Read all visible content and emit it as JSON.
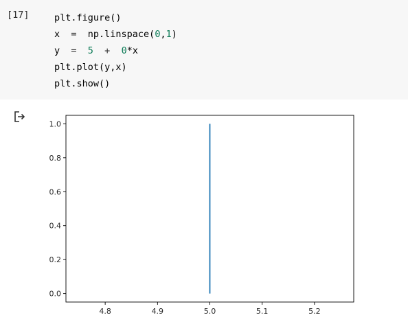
{
  "cell": {
    "prompt": "[17]",
    "lines": [
      [
        {
          "t": "plt.figure()",
          "k": "plain"
        }
      ],
      [
        {
          "t": "x",
          "k": "plain"
        },
        {
          "t": "  =  ",
          "k": "op"
        },
        {
          "t": "np.linspace(",
          "k": "plain"
        },
        {
          "t": "0",
          "k": "num"
        },
        {
          "t": ",",
          "k": "plain"
        },
        {
          "t": "1",
          "k": "num"
        },
        {
          "t": ")",
          "k": "plain"
        }
      ],
      [
        {
          "t": "y",
          "k": "plain"
        },
        {
          "t": "  =  ",
          "k": "op"
        },
        {
          "t": "5",
          "k": "num"
        },
        {
          "t": "  +  ",
          "k": "op"
        },
        {
          "t": "0",
          "k": "num"
        },
        {
          "t": "*x",
          "k": "plain"
        }
      ],
      [
        {
          "t": "plt.plot(y,x)",
          "k": "plain"
        }
      ],
      [
        {
          "t": "plt.show()",
          "k": "plain"
        }
      ]
    ]
  },
  "output": {
    "icon": "output-arrow-icon"
  },
  "chart_data": {
    "type": "line",
    "series": [
      {
        "x": [
          5.0,
          5.0
        ],
        "y": [
          0.0,
          1.0
        ],
        "color": "#1f77b4"
      }
    ],
    "xlim": [
      4.725,
      5.275
    ],
    "ylim": [
      -0.05,
      1.05
    ],
    "xticks": [
      4.8,
      4.9,
      5.0,
      5.1,
      5.2
    ],
    "xtick_labels": [
      "4.8",
      "4.9",
      "5.0",
      "5.1",
      "5.2"
    ],
    "yticks": [
      0.0,
      0.2,
      0.4,
      0.6,
      0.8,
      1.0
    ],
    "ytick_labels": [
      "0.0",
      "0.2",
      "0.4",
      "0.6",
      "0.8",
      "1.0"
    ],
    "grid": false
  }
}
